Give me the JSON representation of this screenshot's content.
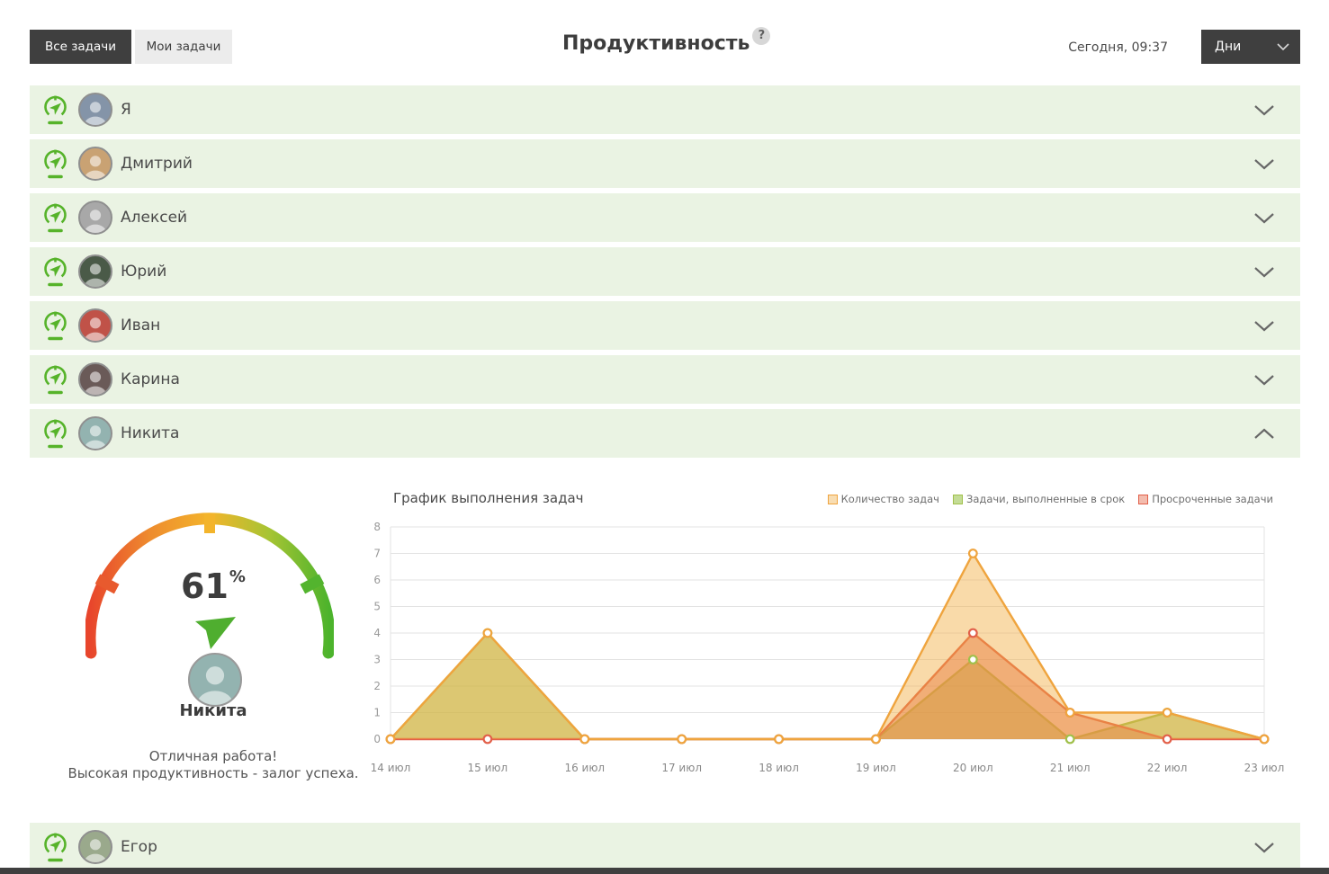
{
  "header": {
    "all_tasks_label": "Все задачи",
    "my_tasks_label": "Мои задачи",
    "title": "Продуктивность",
    "help_label": "?",
    "time": "Сегодня, 09:37",
    "period_label": "Дни"
  },
  "users_top": [
    {
      "name": "Я",
      "expanded": false,
      "avatar_color": "#8494a8"
    },
    {
      "name": "Дмитрий",
      "expanded": false,
      "avatar_color": "#c9a273"
    },
    {
      "name": "Алексей",
      "expanded": false,
      "avatar_color": "#a8a8a8"
    },
    {
      "name": "Юрий",
      "expanded": false,
      "avatar_color": "#4a5a48"
    },
    {
      "name": "Иван",
      "expanded": false,
      "avatar_color": "#c05248"
    },
    {
      "name": "Карина",
      "expanded": false,
      "avatar_color": "#6a5a58"
    },
    {
      "name": "Никита",
      "expanded": true,
      "avatar_color": "#93b3b0"
    }
  ],
  "users_bottom": [
    {
      "name": "Егор",
      "expanded": false,
      "avatar_color": "#9aa98c"
    }
  ],
  "detail": {
    "gauge": {
      "value": "61",
      "unit": "%",
      "user": "Никита",
      "avatar_color": "#93b3b0",
      "message_line1": "Отличная работа!",
      "message_line2": "Высокая продуктивность - залог успеха."
    }
  },
  "chart_data": {
    "type": "area",
    "title": "График выполнения задач",
    "x": [
      "14 июл",
      "15 июл",
      "16 июл",
      "17 июл",
      "18 июл",
      "19 июл",
      "20 июл",
      "21 июл",
      "22 июл",
      "23 июл"
    ],
    "ylim": [
      0,
      8
    ],
    "yticks": [
      0,
      1,
      2,
      3,
      4,
      5,
      6,
      7,
      8
    ],
    "grid": "horizontal",
    "legend_position": "top-right",
    "series": [
      {
        "name": "Количество задач",
        "color": "#efa43e",
        "fill": "rgba(242,172,64,0.45)",
        "legend_fill": "#f8ddb2",
        "values": [
          0,
          4,
          0,
          0,
          0,
          0,
          7,
          1,
          1,
          0
        ]
      },
      {
        "name": "Задачи, выполненные в срок",
        "color": "#a0c04b",
        "fill": "rgba(160,192,75,0.55)",
        "legend_fill": "#c4dc96",
        "values": [
          0,
          4,
          0,
          0,
          0,
          0,
          3,
          0,
          1,
          0
        ]
      },
      {
        "name": "Просроченные задачи",
        "color": "#e2604a",
        "fill": "rgba(226,96,74,0.50)",
        "legend_fill": "#f3bcae",
        "values": [
          0,
          0,
          0,
          0,
          0,
          0,
          4,
          1,
          0,
          0
        ]
      }
    ],
    "draw_order": [
      1,
      2,
      0
    ]
  },
  "theme": {
    "accent_green": "#56b32a",
    "row_background": "#eaf3e3",
    "dark_bar": "#3f3f3f",
    "gauge_gradient": [
      "#e8452c",
      "#ee8c2e",
      "#f3b42b",
      "#a6c433",
      "#4cb32c"
    ]
  }
}
